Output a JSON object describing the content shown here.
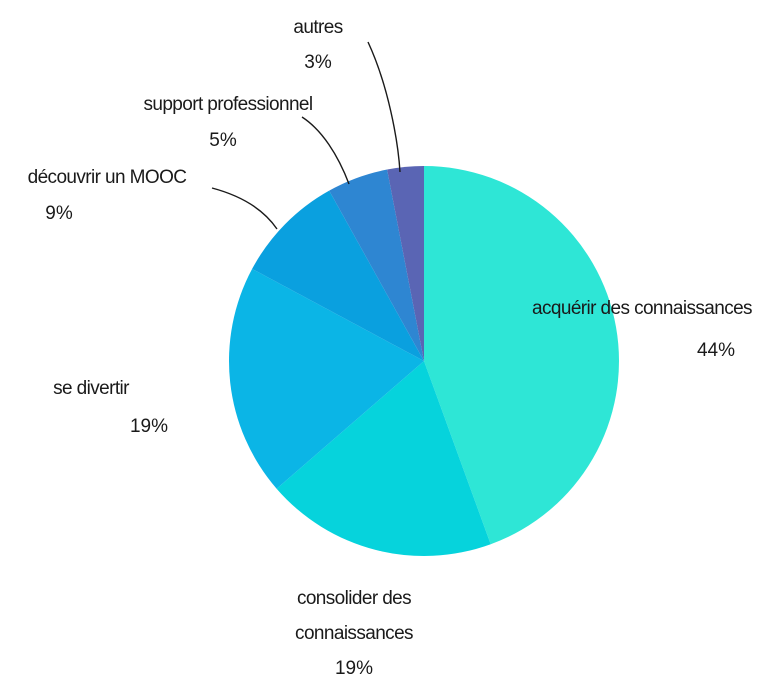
{
  "chart_data": {
    "type": "pie",
    "title": "",
    "start_angle_deg": 0,
    "direction": "clockwise",
    "slices": [
      {
        "label": "acquérir des connaissances",
        "label_lines": [
          "acquérir des connaissances"
        ],
        "value": 44,
        "value_label": "44%",
        "color": "#2ee6d6"
      },
      {
        "label": "consolider des connaissances",
        "label_lines": [
          "consolider des",
          "connaissances"
        ],
        "value": 19,
        "value_label": "19%",
        "color": "#06d3dc"
      },
      {
        "label": "se divertir",
        "label_lines": [
          "se divertir"
        ],
        "value": 19,
        "value_label": "19%",
        "color": "#0bb5e6"
      },
      {
        "label": "découvrir un MOOC",
        "label_lines": [
          "découvrir un MOOC"
        ],
        "value": 9,
        "value_label": "9%",
        "color": "#0aa0df"
      },
      {
        "label": "support professionnel",
        "label_lines": [
          "support professionnel"
        ],
        "value": 5,
        "value_label": "5%",
        "color": "#2e86d2"
      },
      {
        "label": "autres",
        "label_lines": [
          "autres"
        ],
        "value": 3,
        "value_label": "3%",
        "color": "#5a65b4"
      }
    ]
  }
}
